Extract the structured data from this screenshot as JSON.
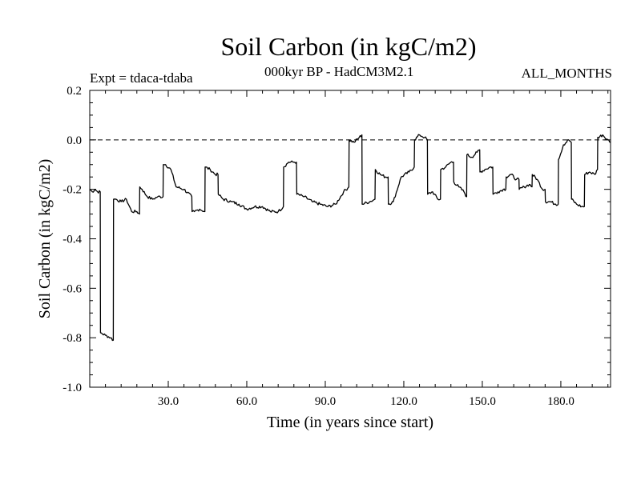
{
  "chart_data": {
    "type": "line",
    "title": "Soil Carbon (in kgC/m2)",
    "subtitle": "000kyr BP - HadCM3M2.1",
    "experiment_label": "Expt = tdaca-tdaba",
    "period_label": "ALL_MONTHS",
    "xlabel": "Time (in years since start)",
    "ylabel": "Soil Carbon (in kgC/m2)",
    "xlim": [
      0,
      199
    ],
    "ylim": [
      -1.0,
      0.2
    ],
    "x_ticks": [
      30,
      60,
      90,
      120,
      150,
      180
    ],
    "x_tick_labels": [
      "30.0",
      "60.0",
      "90.0",
      "120.0",
      "150.0",
      "180.0"
    ],
    "y_ticks": [
      0.2,
      0.0,
      -0.2,
      -0.4,
      -0.6,
      -0.8,
      -1.0
    ],
    "y_tick_labels": [
      "0.2",
      "0.0",
      "-0.2",
      "-0.4",
      "-0.6",
      "-0.8",
      "-1.0"
    ],
    "reference_line": {
      "y": 0.0,
      "style": "dashed"
    },
    "series": [
      {
        "name": "tdaca-tdaba",
        "x": [
          0,
          1,
          2,
          3,
          4,
          4.1,
          6,
          8,
          9,
          9.1,
          10,
          12,
          14,
          16,
          18,
          19,
          19.1,
          20,
          22,
          24,
          26,
          28,
          28.1,
          29,
          31,
          33,
          36,
          39,
          39.1,
          40,
          42,
          44,
          44.1,
          46,
          48,
          49,
          49.1,
          51,
          54,
          57,
          60,
          63,
          66,
          69,
          72,
          74,
          74.1,
          76,
          78,
          79,
          79.1,
          82,
          85,
          88,
          91,
          94,
          97,
          99,
          99.1,
          101,
          103,
          104,
          104.1,
          107,
          109,
          109.1,
          111,
          113,
          114,
          114.1,
          116,
          119,
          122,
          124,
          124.1,
          126,
          128,
          129,
          129.1,
          131,
          133,
          134,
          134.1,
          136,
          138,
          139,
          139.1,
          141,
          143,
          144,
          144.1,
          146,
          148,
          149,
          149.1,
          151,
          153,
          154,
          154.1,
          156,
          158,
          159,
          159.1,
          161,
          163,
          164,
          164.1,
          166,
          168,
          169,
          169.1,
          171,
          173,
          174,
          174.1,
          176,
          178,
          179,
          179.1,
          181,
          183,
          184,
          184.1,
          186,
          188,
          189,
          189.1,
          191,
          193,
          194,
          194.1,
          196,
          198,
          199
        ],
        "y": [
          -0.2,
          -0.21,
          -0.2,
          -0.21,
          -0.21,
          -0.78,
          -0.79,
          -0.8,
          -0.81,
          -0.24,
          -0.24,
          -0.25,
          -0.24,
          -0.29,
          -0.29,
          -0.3,
          -0.19,
          -0.2,
          -0.23,
          -0.24,
          -0.23,
          -0.23,
          -0.1,
          -0.1,
          -0.12,
          -0.19,
          -0.2,
          -0.23,
          -0.29,
          -0.29,
          -0.28,
          -0.29,
          -0.11,
          -0.12,
          -0.14,
          -0.14,
          -0.22,
          -0.24,
          -0.25,
          -0.26,
          -0.28,
          -0.27,
          -0.27,
          -0.29,
          -0.29,
          -0.27,
          -0.11,
          -0.09,
          -0.09,
          -0.09,
          -0.22,
          -0.23,
          -0.25,
          -0.26,
          -0.27,
          -0.26,
          -0.21,
          -0.19,
          0.0,
          -0.01,
          0.01,
          0.02,
          -0.26,
          -0.25,
          -0.24,
          -0.12,
          -0.14,
          -0.15,
          -0.15,
          -0.26,
          -0.25,
          -0.15,
          -0.13,
          -0.11,
          0.0,
          0.02,
          0.01,
          0.0,
          -0.22,
          -0.21,
          -0.24,
          -0.24,
          -0.12,
          -0.11,
          -0.09,
          -0.09,
          -0.17,
          -0.19,
          -0.21,
          -0.23,
          -0.06,
          -0.07,
          -0.05,
          -0.04,
          -0.13,
          -0.12,
          -0.11,
          -0.11,
          -0.22,
          -0.21,
          -0.2,
          -0.2,
          -0.15,
          -0.14,
          -0.16,
          -0.16,
          -0.2,
          -0.19,
          -0.18,
          -0.19,
          -0.14,
          -0.16,
          -0.2,
          -0.2,
          -0.25,
          -0.25,
          -0.26,
          -0.26,
          -0.08,
          -0.02,
          0.0,
          -0.01,
          -0.24,
          -0.26,
          -0.27,
          -0.27,
          -0.14,
          -0.13,
          -0.14,
          -0.12,
          0.01,
          0.02,
          0.0,
          -0.01
        ]
      }
    ]
  }
}
